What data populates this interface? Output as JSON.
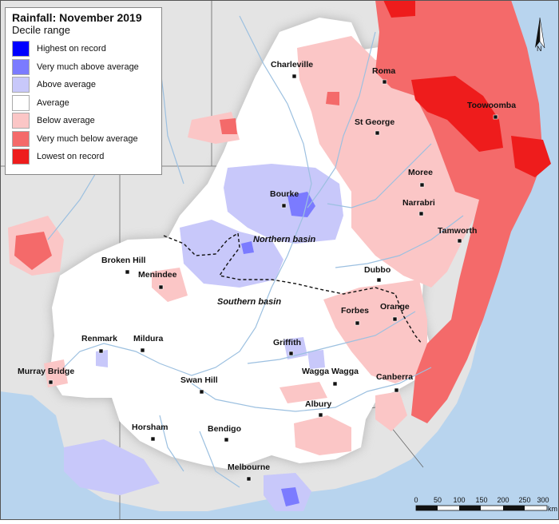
{
  "legend": {
    "title": "Rainfall: November 2019",
    "subtitle": "Decile range",
    "items": [
      {
        "label": "Highest on record",
        "color": "#0000ff"
      },
      {
        "label": "Very much above average",
        "color": "#7b7bff"
      },
      {
        "label": "Above average",
        "color": "#c8c8fa"
      },
      {
        "label": "Average",
        "color": "#ffffff"
      },
      {
        "label": "Below average",
        "color": "#fbc6c6"
      },
      {
        "label": "Very much below average",
        "color": "#f46a6a"
      },
      {
        "label": "Lowest on record",
        "color": "#ee1c1c"
      }
    ]
  },
  "cities": {
    "charleville": "Charleville",
    "roma": "Roma",
    "st_george": "St George",
    "toowoomba": "Toowoomba",
    "moree": "Moree",
    "bourke": "Bourke",
    "narrabri": "Narrabri",
    "tamworth": "Tamworth",
    "broken_hill": "Broken Hill",
    "menindee": "Menindee",
    "dubbo": "Dubbo",
    "orange": "Orange",
    "forbes": "Forbes",
    "renmark": "Renmark",
    "mildura": "Mildura",
    "griffith": "Griffith",
    "wagga_wagga": "Wagga Wagga",
    "murray_bridge": "Murray Bridge",
    "canberra": "Canberra",
    "swan_hill": "Swan Hill",
    "albury": "Albury",
    "horsham": "Horsham",
    "bendigo": "Bendigo",
    "melbourne": "Melbourne"
  },
  "basins": {
    "northern": "Northern basin",
    "southern": "Southern basin"
  },
  "north_arrow": {
    "label": "N"
  },
  "scale_bar": {
    "ticks": [
      "0",
      "50",
      "100",
      "150",
      "200",
      "250",
      "300"
    ],
    "unit": "km"
  },
  "colors": {
    "outside": "#e4e4e4",
    "ocean": "#b8d4ee",
    "basin": "#ffffff",
    "river": "#9cc0e0"
  }
}
